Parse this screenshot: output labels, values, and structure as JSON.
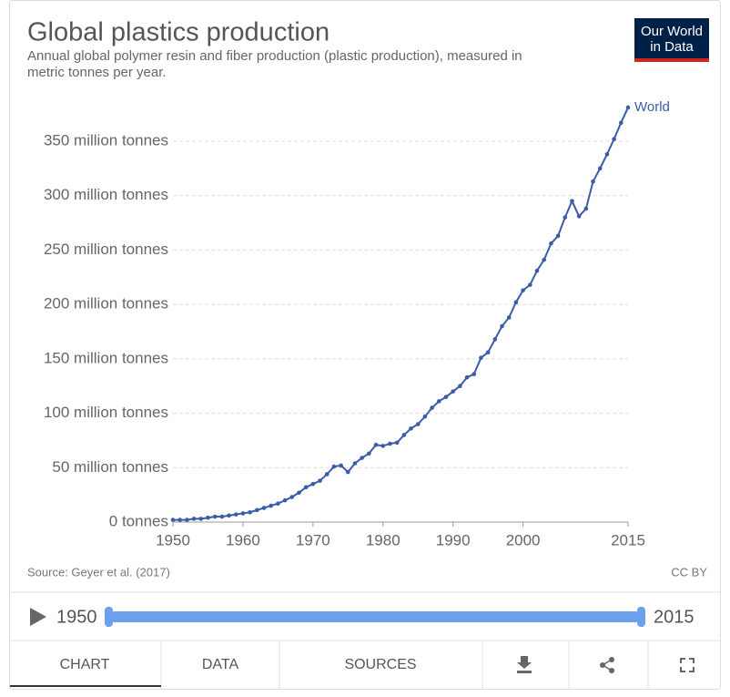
{
  "chart_data": {
    "type": "line",
    "title": "Global plastics production",
    "subtitle": "Annual global polymer resin and fiber production (plastic production), measured in metric tonnes per year.",
    "logo": [
      "Our World",
      "in Data"
    ],
    "source": "Source: Geyer et al. (2017)",
    "license": "CC BY",
    "x": [
      1950,
      1951,
      1952,
      1953,
      1954,
      1955,
      1956,
      1957,
      1958,
      1959,
      1960,
      1961,
      1962,
      1963,
      1964,
      1965,
      1966,
      1967,
      1968,
      1969,
      1970,
      1971,
      1972,
      1973,
      1974,
      1975,
      1976,
      1977,
      1978,
      1979,
      1980,
      1981,
      1982,
      1983,
      1984,
      1985,
      1986,
      1987,
      1988,
      1989,
      1990,
      1991,
      1992,
      1993,
      1994,
      1995,
      1996,
      1997,
      1998,
      1999,
      2000,
      2001,
      2002,
      2003,
      2004,
      2005,
      2006,
      2007,
      2008,
      2009,
      2010,
      2011,
      2012,
      2013,
      2014,
      2015
    ],
    "series": [
      {
        "name": "World",
        "color": "#3c5ba9",
        "values": [
          2,
          2,
          2,
          3,
          3,
          4,
          5,
          5,
          6,
          7,
          8,
          9,
          11,
          13,
          15,
          17,
          20,
          23,
          27,
          32,
          35,
          38,
          44,
          51,
          52,
          46,
          54,
          59,
          63,
          71,
          70,
          72,
          73,
          80,
          86,
          90,
          97,
          105,
          111,
          115,
          120,
          125,
          133,
          136,
          151,
          156,
          168,
          180,
          188,
          202,
          213,
          218,
          231,
          241,
          256,
          263,
          280,
          295,
          281,
          288,
          313,
          325,
          338,
          352,
          367,
          381
        ]
      }
    ],
    "xlim": [
      1950,
      2015
    ],
    "xticks": [
      1950,
      1960,
      1970,
      1980,
      1990,
      2000,
      2015
    ],
    "ylim": [
      0,
      390
    ],
    "yticks": [
      {
        "value": 0,
        "label": "0 tonnes"
      },
      {
        "value": 50,
        "label": "50 million tonnes"
      },
      {
        "value": 100,
        "label": "100 million tonnes"
      },
      {
        "value": 150,
        "label": "150 million tonnes"
      },
      {
        "value": 200,
        "label": "200 million tonnes"
      },
      {
        "value": 250,
        "label": "250 million tonnes"
      },
      {
        "value": 300,
        "label": "300 million tonnes"
      },
      {
        "value": 350,
        "label": "350 million tonnes"
      }
    ],
    "grid": true,
    "timeline": {
      "start": 1950,
      "end": 2015
    },
    "tabs": [
      "CHART",
      "DATA",
      "SOURCES"
    ]
  }
}
